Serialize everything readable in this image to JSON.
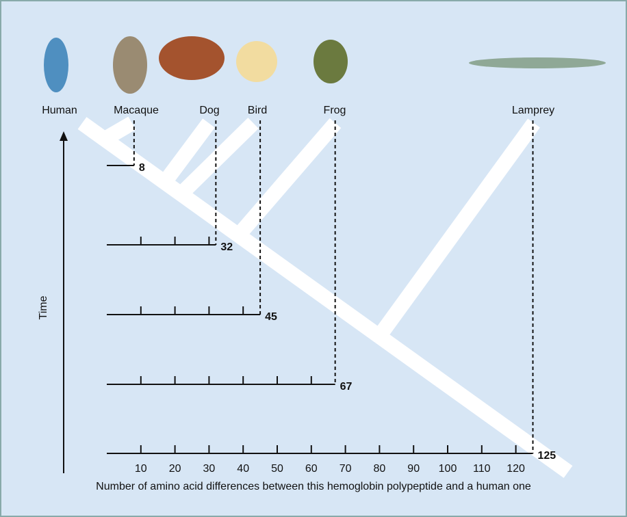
{
  "species": [
    "Human",
    "Macaque",
    "Dog",
    "Bird",
    "Frog",
    "Lamprey"
  ],
  "differences": [
    8,
    32,
    45,
    67,
    125
  ],
  "axis": {
    "ticks": [
      10,
      20,
      30,
      40,
      50,
      60,
      70,
      80,
      90,
      100,
      110,
      120
    ],
    "label": "Number of amino acid differences between this hemoglobin polypeptide and a human one"
  },
  "time_label": "Time"
}
